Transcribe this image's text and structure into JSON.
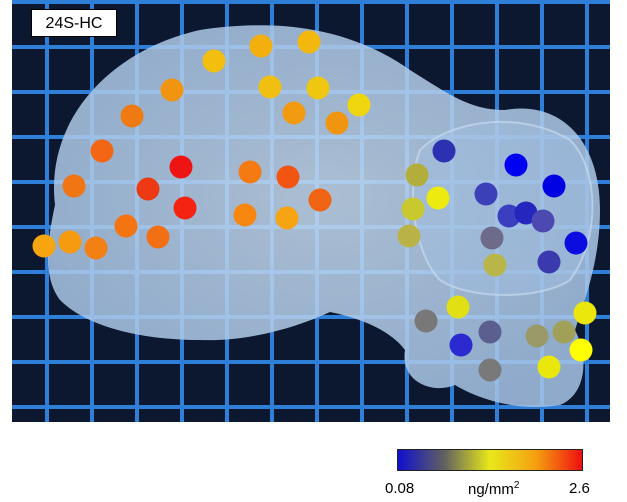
{
  "image": {
    "label": "24S-HC",
    "background": "blue grid photo with translucent brain slice",
    "colorbar": {
      "min_label": "0.08",
      "max_label": "2.6",
      "unit_base": "ng/mm",
      "unit_sup": "2",
      "gradient": [
        "#1010d0",
        "#606060",
        "#e8e81a",
        "#f4a010",
        "#f01010"
      ]
    }
  },
  "spots": [
    {
      "c": "#f2be0f"
    },
    {
      "c": "#f3b00d"
    },
    {
      "c": "#f3b80e"
    },
    {
      "c": "#f19410"
    },
    {
      "c": "#f0c010"
    },
    {
      "c": "#efc710"
    },
    {
      "c": "#f0d60f"
    },
    {
      "c": "#ef7a11"
    },
    {
      "c": "#f29a10"
    },
    {
      "c": "#f09510"
    },
    {
      "c": "#f36714"
    },
    {
      "c": "#f57a12"
    },
    {
      "c": "#ee1414"
    },
    {
      "c": "#f25412"
    },
    {
      "c": "#ed3a14"
    },
    {
      "c": "#f27513"
    },
    {
      "c": "#f06413"
    },
    {
      "c": "#f52312"
    },
    {
      "c": "#f88710"
    },
    {
      "c": "#f7a412"
    },
    {
      "c": "#f47411"
    },
    {
      "c": "#f26f14"
    },
    {
      "c": "#f69a10"
    },
    {
      "c": "#f6a510"
    },
    {
      "c": "#f38014"
    },
    {
      "c": "#2b31b1"
    },
    {
      "c": "#0000f2"
    },
    {
      "c": "#0002e4"
    },
    {
      "c": "#b3ad3b"
    },
    {
      "c": "#ecea0e"
    },
    {
      "c": "#3b3fb8"
    },
    {
      "c": "#c8c82f"
    },
    {
      "c": "#3a3fbf"
    },
    {
      "c": "#2426bd"
    },
    {
      "c": "#b9b347"
    },
    {
      "c": "#6e6b8a"
    },
    {
      "c": "#4c4ab2"
    },
    {
      "c": "#0a0ce0"
    },
    {
      "c": "#b8b648"
    },
    {
      "c": "#3a39ae"
    },
    {
      "c": "#e0e015"
    },
    {
      "c": "#787878"
    },
    {
      "c": "#5a5f90"
    },
    {
      "c": "#2a2ad0"
    },
    {
      "c": "#9a9a68"
    },
    {
      "c": "#a0a058"
    },
    {
      "c": "#ebe70d"
    },
    {
      "c": "#ffff00"
    },
    {
      "c": "#797979"
    },
    {
      "c": "#eae70d"
    }
  ]
}
